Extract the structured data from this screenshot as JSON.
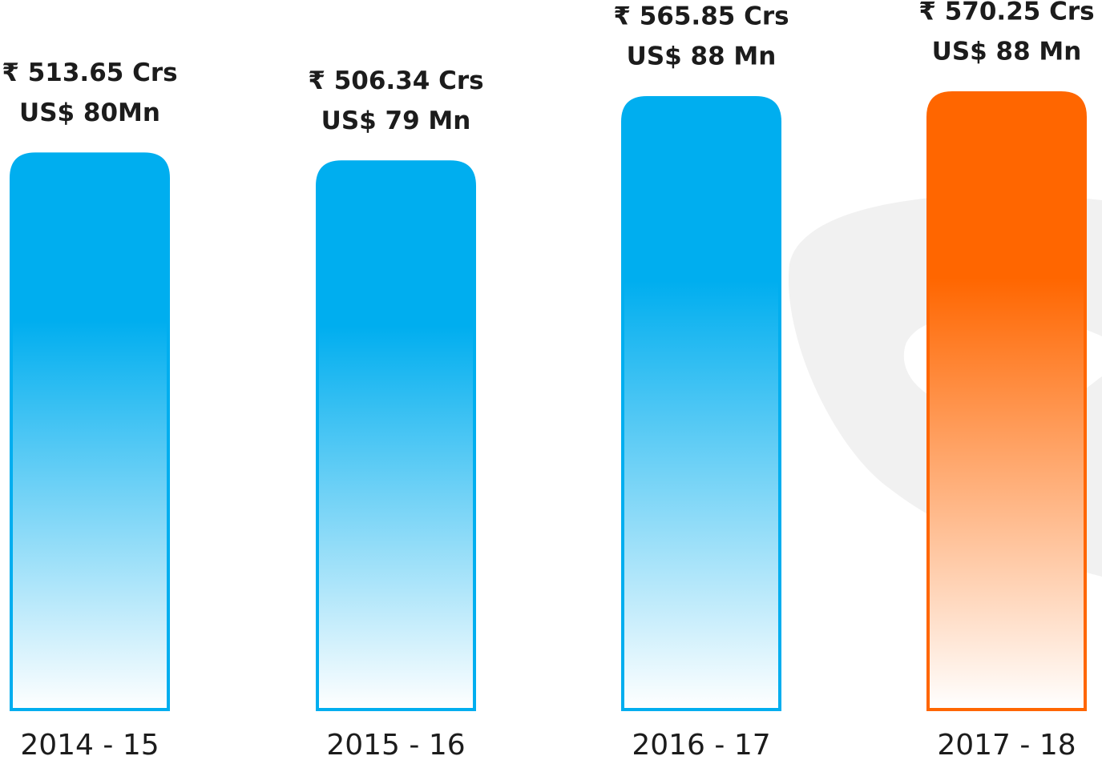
{
  "chart_data": {
    "type": "bar",
    "categories": [
      "2014 - 15",
      "2015 - 16",
      "2016 - 17",
      "2017 - 18"
    ],
    "values": [
      513.65,
      506.34,
      565.85,
      570.25
    ],
    "value_labels": [
      "₹ 513.65 Crs",
      "₹ 506.34 Crs",
      "₹ 565.85 Crs",
      "₹ 570.25 Crs"
    ],
    "secondary_labels": [
      "US$ 80Mn",
      "US$ 79 Mn",
      "US$ 88 Mn",
      "US$ 88 Mn"
    ],
    "colors": [
      "#00aeef",
      "#00aeef",
      "#00aeef",
      "#ff6600"
    ]
  }
}
